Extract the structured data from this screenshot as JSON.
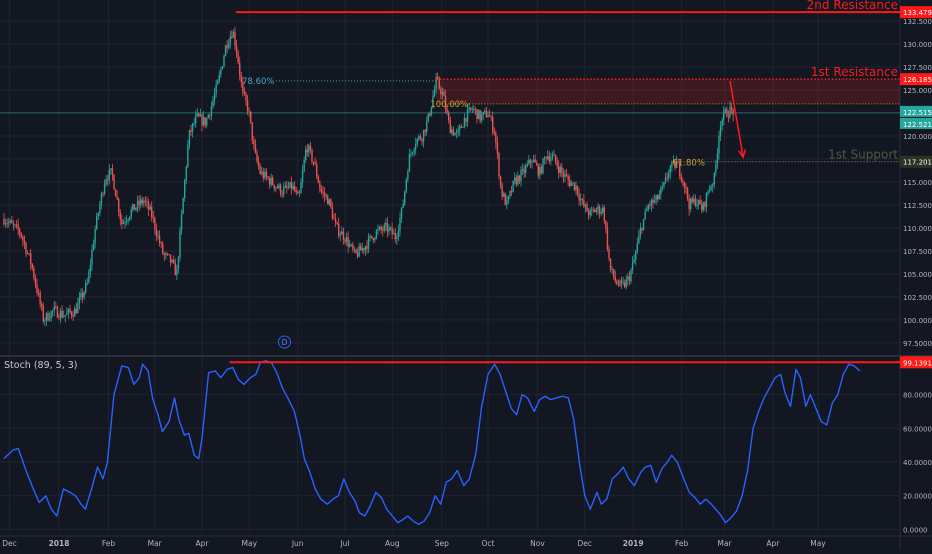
{
  "chart_data": [
    {
      "type": "candlestick",
      "ylim": [
        96.5,
        134.8
      ],
      "y_ticks": [
        97.5,
        100,
        102.5,
        105,
        107.5,
        110,
        112.5,
        115,
        117.5,
        120,
        122.5,
        125,
        127.5,
        130,
        132.5
      ],
      "y_tick_labels": [
        "97.5000",
        "100.0000",
        "102.5000",
        "105.0000",
        "107.5000",
        "110.0000",
        "112.5000",
        "115.0000",
        "117.5000",
        "120.0000",
        "122.5000",
        "125.0000",
        "127.5000",
        "130.0000",
        "132.5000"
      ],
      "x_ticks": [
        {
          "label": "Dec",
          "t": 0.5
        },
        {
          "label": "2018",
          "t": 5
        },
        {
          "label": "Feb",
          "t": 9.5
        },
        {
          "label": "Mar",
          "t": 13.7
        },
        {
          "label": "Apr",
          "t": 18
        },
        {
          "label": "May",
          "t": 22.3
        },
        {
          "label": "Jun",
          "t": 26.7
        },
        {
          "label": "Jul",
          "t": 31
        },
        {
          "label": "Aug",
          "t": 35.3
        },
        {
          "label": "Sep",
          "t": 39.8
        },
        {
          "label": "Oct",
          "t": 44
        },
        {
          "label": "Nov",
          "t": 48.5
        },
        {
          "label": "Dec",
          "t": 52.8
        },
        {
          "label": "2019",
          "t": 57.2
        },
        {
          "label": "Feb",
          "t": 61.6
        },
        {
          "label": "Mar",
          "t": 65.5
        },
        {
          "label": "Apr",
          "t": 69.9
        },
        {
          "label": "May",
          "t": 74
        }
      ],
      "path_points": [
        [
          0,
          111
        ],
        [
          1.5,
          109.5
        ],
        [
          2.5,
          106
        ],
        [
          3.6,
          100
        ],
        [
          4.5,
          101
        ],
        [
          5.5,
          100.5
        ],
        [
          6.5,
          101
        ],
        [
          7.6,
          104
        ],
        [
          8.3,
          110
        ],
        [
          9.2,
          115.5
        ],
        [
          9.8,
          116
        ],
        [
          10.7,
          110.5
        ],
        [
          11.7,
          112
        ],
        [
          12.7,
          113
        ],
        [
          13.4,
          111.5
        ],
        [
          14,
          109
        ],
        [
          14.5,
          107
        ],
        [
          15.1,
          106.5
        ],
        [
          15.7,
          105
        ],
        [
          16.2,
          112
        ],
        [
          16.8,
          120
        ],
        [
          17.5,
          122
        ],
        [
          18.3,
          121.5
        ],
        [
          18.8,
          123
        ],
        [
          19.5,
          126
        ],
        [
          20.2,
          130
        ],
        [
          20.8,
          131.5
        ],
        [
          21.2,
          129
        ],
        [
          21.7,
          124.5
        ],
        [
          22.2,
          123
        ],
        [
          22.8,
          118
        ],
        [
          23.3,
          116
        ],
        [
          24.3,
          115
        ],
        [
          25.3,
          114
        ],
        [
          26.2,
          114.5
        ],
        [
          26.8,
          113
        ],
        [
          27.5,
          119
        ],
        [
          28.2,
          117
        ],
        [
          28.8,
          114
        ],
        [
          29.5,
          113
        ],
        [
          30.2,
          110
        ],
        [
          31,
          109
        ],
        [
          31.9,
          107
        ],
        [
          32.8,
          108
        ],
        [
          33.8,
          109.5
        ],
        [
          34.8,
          110
        ],
        [
          35.6,
          109
        ],
        [
          36.2,
          112
        ],
        [
          36.8,
          117.5
        ],
        [
          37.4,
          119.5
        ],
        [
          38,
          120
        ],
        [
          38.6,
          122
        ],
        [
          39.3,
          126
        ],
        [
          39.9,
          124.5
        ],
        [
          40.5,
          121
        ],
        [
          41.2,
          120
        ],
        [
          41.9,
          122
        ],
        [
          42.6,
          123
        ],
        [
          43.3,
          122
        ],
        [
          44,
          122.5
        ],
        [
          44.6,
          120.5
        ],
        [
          45.2,
          114
        ],
        [
          45.7,
          112.5
        ],
        [
          46.4,
          115
        ],
        [
          47.2,
          116
        ],
        [
          48,
          117.5
        ],
        [
          48.7,
          116
        ],
        [
          49.3,
          118
        ],
        [
          50,
          117.5
        ],
        [
          50.7,
          116
        ],
        [
          51.4,
          115
        ],
        [
          52,
          114.5
        ],
        [
          52.6,
          112.5
        ],
        [
          53.3,
          111.5
        ],
        [
          53.8,
          112
        ],
        [
          54.5,
          112
        ],
        [
          55.1,
          105.5
        ],
        [
          55.7,
          104
        ],
        [
          56.2,
          103.5
        ],
        [
          56.8,
          104.5
        ],
        [
          57.3,
          106.5
        ],
        [
          57.9,
          110
        ],
        [
          58.6,
          112.5
        ],
        [
          59.3,
          113
        ],
        [
          60,
          114.5
        ],
        [
          60.5,
          116.5
        ],
        [
          61.2,
          117
        ],
        [
          61.8,
          115
        ],
        [
          62.3,
          112.5
        ],
        [
          62.9,
          113
        ],
        [
          63.5,
          112
        ],
        [
          64,
          114
        ],
        [
          64.6,
          115.5
        ],
        [
          65.1,
          121.5
        ],
        [
          65.6,
          122.5
        ],
        [
          66.1,
          122.8
        ],
        [
          66.4,
          122.52
        ]
      ],
      "last_price": 122.5213
    },
    {
      "type": "line",
      "ylim": [
        -1.5,
        100.5
      ],
      "y_ticks": [
        0,
        20,
        40,
        60,
        80
      ],
      "y_tick_labels": [
        "0.0000",
        "20.0000",
        "40.0000",
        "60.0000",
        "80.0000"
      ],
      "points": [
        [
          0,
          42
        ],
        [
          0.8,
          47
        ],
        [
          1.3,
          48
        ],
        [
          2,
          35
        ],
        [
          2.6,
          25
        ],
        [
          3.2,
          16
        ],
        [
          3.8,
          20
        ],
        [
          4.3,
          12
        ],
        [
          4.8,
          8
        ],
        [
          5.4,
          24
        ],
        [
          6,
          22
        ],
        [
          6.5,
          20
        ],
        [
          7,
          15
        ],
        [
          7.4,
          12
        ],
        [
          8,
          25
        ],
        [
          8.5,
          37
        ],
        [
          9,
          30
        ],
        [
          9.4,
          40
        ],
        [
          10,
          80
        ],
        [
          10.7,
          97
        ],
        [
          11.3,
          96
        ],
        [
          11.8,
          86
        ],
        [
          12.3,
          90
        ],
        [
          12.6,
          98
        ],
        [
          13.1,
          94
        ],
        [
          13.5,
          78
        ],
        [
          14,
          68
        ],
        [
          14.4,
          58
        ],
        [
          15,
          64
        ],
        [
          15.5,
          78
        ],
        [
          15.9,
          65
        ],
        [
          16.4,
          56
        ],
        [
          16.8,
          57
        ],
        [
          17.3,
          44
        ],
        [
          17.7,
          42
        ],
        [
          18,
          54
        ],
        [
          18.6,
          93
        ],
        [
          19.2,
          94
        ],
        [
          19.7,
          90
        ],
        [
          20.3,
          95
        ],
        [
          20.8,
          96
        ],
        [
          21.3,
          89
        ],
        [
          21.8,
          86
        ],
        [
          22.4,
          90
        ],
        [
          22.9,
          92
        ],
        [
          23.3,
          99
        ],
        [
          23.8,
          100
        ],
        [
          24.3,
          99
        ],
        [
          24.8,
          93
        ],
        [
          25.3,
          84
        ],
        [
          25.8,
          78
        ],
        [
          26.4,
          70
        ],
        [
          26.9,
          56
        ],
        [
          27.3,
          42
        ],
        [
          27.8,
          34
        ],
        [
          28.3,
          24
        ],
        [
          28.8,
          18
        ],
        [
          29.4,
          15
        ],
        [
          29.9,
          18
        ],
        [
          30.4,
          20
        ],
        [
          30.9,
          30
        ],
        [
          31.4,
          22
        ],
        [
          31.9,
          17
        ],
        [
          32.3,
          10
        ],
        [
          32.8,
          8
        ],
        [
          33.3,
          14
        ],
        [
          33.8,
          22
        ],
        [
          34.3,
          19
        ],
        [
          34.8,
          12
        ],
        [
          35.3,
          8
        ],
        [
          35.8,
          4
        ],
        [
          36.3,
          6
        ],
        [
          36.7,
          8
        ],
        [
          37.2,
          5
        ],
        [
          37.7,
          3
        ],
        [
          38.2,
          5
        ],
        [
          38.7,
          10
        ],
        [
          39.2,
          20
        ],
        [
          39.7,
          15
        ],
        [
          40.2,
          28
        ],
        [
          40.7,
          30
        ],
        [
          41.2,
          35
        ],
        [
          41.8,
          26
        ],
        [
          42.3,
          30
        ],
        [
          42.9,
          45
        ],
        [
          43.4,
          72
        ],
        [
          44,
          92
        ],
        [
          44.6,
          98
        ],
        [
          45.1,
          92
        ],
        [
          45.6,
          82
        ],
        [
          46.1,
          72
        ],
        [
          46.6,
          68
        ],
        [
          47.1,
          80
        ],
        [
          47.6,
          78
        ],
        [
          48.2,
          70
        ],
        [
          48.7,
          77
        ],
        [
          49.2,
          79
        ],
        [
          49.7,
          77
        ],
        [
          50.2,
          78
        ],
        [
          50.8,
          79
        ],
        [
          51.3,
          78
        ],
        [
          51.8,
          65
        ],
        [
          52.3,
          40
        ],
        [
          52.8,
          20
        ],
        [
          53.3,
          12
        ],
        [
          53.9,
          22
        ],
        [
          54.3,
          15
        ],
        [
          54.8,
          18
        ],
        [
          55.3,
          30
        ],
        [
          55.8,
          33
        ],
        [
          56.3,
          37
        ],
        [
          56.8,
          30
        ],
        [
          57.3,
          26
        ],
        [
          57.9,
          34
        ],
        [
          58.3,
          37
        ],
        [
          58.8,
          38
        ],
        [
          59.3,
          28
        ],
        [
          59.8,
          36
        ],
        [
          60.3,
          40
        ],
        [
          60.7,
          44
        ],
        [
          61.2,
          40
        ],
        [
          61.8,
          30
        ],
        [
          62.3,
          22
        ],
        [
          62.8,
          19
        ],
        [
          63.3,
          15
        ],
        [
          63.8,
          18
        ],
        [
          64.3,
          15
        ],
        [
          64.7,
          12
        ],
        [
          65.1,
          9
        ],
        [
          65.6,
          4
        ],
        [
          66.1,
          7
        ],
        [
          66.6,
          11
        ],
        [
          67.1,
          20
        ],
        [
          67.6,
          35
        ],
        [
          68.1,
          60
        ],
        [
          68.6,
          70
        ],
        [
          69.1,
          78
        ],
        [
          69.6,
          84
        ],
        [
          70.1,
          90
        ],
        [
          70.6,
          92
        ],
        [
          71,
          81
        ],
        [
          71.5,
          73
        ],
        [
          72,
          95
        ],
        [
          72.4,
          90
        ],
        [
          72.9,
          73
        ],
        [
          73.3,
          80
        ],
        [
          73.8,
          72
        ],
        [
          74.3,
          64
        ],
        [
          74.8,
          62
        ],
        [
          75.3,
          75
        ],
        [
          75.8,
          80
        ],
        [
          76.3,
          92
        ],
        [
          76.8,
          98
        ],
        [
          77.3,
          97
        ],
        [
          77.8,
          94
        ]
      ]
    }
  ],
  "price_pane": {
    "resistance2": {
      "label": "2nd Resistance",
      "level": 133.4793,
      "price_tag": "133.4793",
      "t_start": 21.1
    },
    "resistance1": {
      "label": "1st Resistance",
      "level": 126.1857,
      "price_tag": "126.1857",
      "t_start": 39.3
    },
    "support1": {
      "label": "1st Support",
      "level": 117.2011,
      "price_tag": "117.2011",
      "t_start": 61.5,
      "t_end": 67.5
    },
    "fib_78": {
      "label": "78.60%",
      "level": 126.0,
      "t_start": 21.1
    },
    "fib_100": {
      "label": "100.00%",
      "level": 123.5,
      "t_start": 39.3
    },
    "fib_61": {
      "label": "61.80%",
      "level": 117.1,
      "t_start": 61.5
    },
    "teal_level": {
      "level": 122.515,
      "price_tag": "122.5150"
    },
    "last_price_tag": "122.5213",
    "arrow": {
      "t_from": 66.0,
      "p_from": 126.0,
      "t_to": 67.2,
      "p_to": 117.7
    },
    "dividend_marker": "D",
    "dividend_t": 25.5
  },
  "indicator_pane": {
    "title": "Stoch (89, 5, 3)",
    "max_line": {
      "level": 99.1391,
      "price_tag": "99.1391",
      "t_start": 20.5
    }
  },
  "colors": {
    "background": "#131722",
    "up": "#26a69a",
    "down": "#ef5350",
    "resistance": "#ff1a1a",
    "stoch": "#2962ff",
    "support": "#3f4a34",
    "zone": "rgba(255,40,40,0.18)",
    "fib_gold": "#c9a227",
    "fib_78": "#4aa3c9",
    "grid": "#1f2432",
    "axis_text": "#b2b5be"
  }
}
